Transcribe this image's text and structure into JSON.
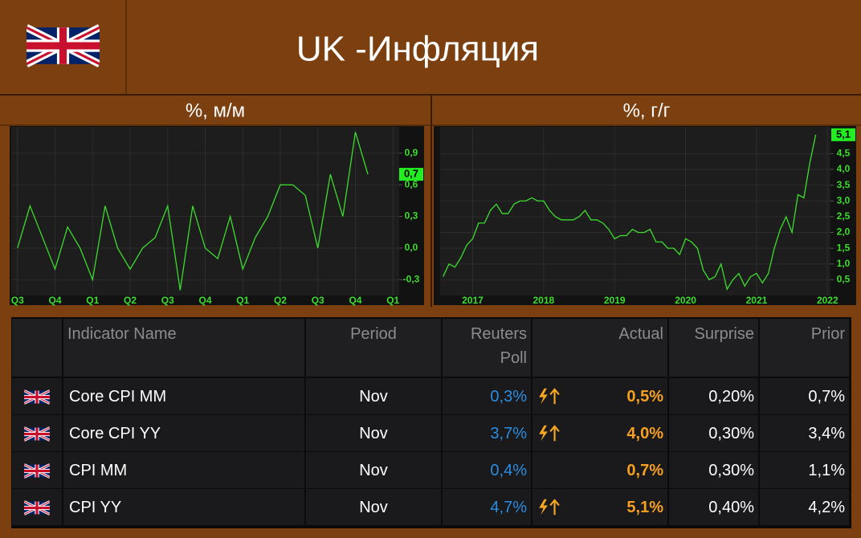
{
  "header": {
    "title": "UK -Инфляция"
  },
  "chart_data": [
    {
      "type": "line",
      "title": "%, м/м",
      "color": "#3ddc2e",
      "grid": true,
      "categories": [
        "Q3",
        null,
        null,
        "Q4",
        null,
        null,
        "Q1",
        null,
        null,
        "Q2",
        null,
        null,
        "Q3",
        null,
        null,
        "Q4",
        null,
        null,
        "Q1",
        null,
        null,
        "Q2",
        null,
        null,
        "Q3",
        null,
        null,
        "Q4",
        null,
        null,
        "Q1"
      ],
      "values": [
        0.0,
        0.4,
        0.1,
        -0.2,
        0.2,
        0.0,
        -0.3,
        0.4,
        0.0,
        -0.2,
        0.0,
        0.1,
        0.4,
        -0.4,
        0.4,
        0.0,
        -0.1,
        0.3,
        -0.2,
        0.1,
        0.3,
        0.6,
        0.6,
        0.5,
        0.0,
        0.7,
        0.3,
        1.1,
        0.7,
        null,
        null
      ],
      "value_labels": [
        null,
        null,
        null,
        null,
        null,
        null,
        null,
        null,
        null,
        null,
        null,
        null,
        null,
        null,
        null,
        null,
        null,
        null,
        null,
        null,
        null,
        null,
        null,
        null,
        null,
        null,
        null,
        null,
        "0,7",
        null,
        null
      ],
      "ylim": [
        -0.45,
        1.15
      ],
      "yticks": [
        {
          "value": -0.3,
          "label": "-0,3"
        },
        {
          "value": 0.0,
          "label": "0,0"
        },
        {
          "value": 0.3,
          "label": "0,3"
        },
        {
          "value": 0.6,
          "label": "0,6"
        },
        {
          "value": 0.9,
          "label": "0,9"
        }
      ]
    },
    {
      "type": "line",
      "title": "%, г/г",
      "color": "#3ddc2e",
      "grid": true,
      "categories": [
        null,
        null,
        null,
        null,
        null,
        "2017",
        null,
        null,
        null,
        null,
        null,
        null,
        null,
        null,
        null,
        null,
        null,
        "2018",
        null,
        null,
        null,
        null,
        null,
        null,
        null,
        null,
        null,
        null,
        null,
        "2019",
        null,
        null,
        null,
        null,
        null,
        null,
        null,
        null,
        null,
        null,
        null,
        "2020",
        null,
        null,
        null,
        null,
        null,
        null,
        null,
        null,
        null,
        null,
        null,
        "2021",
        null,
        null,
        null,
        null,
        null,
        null,
        null,
        null,
        null,
        null,
        null,
        "2022"
      ],
      "values": [
        0.6,
        1.0,
        0.9,
        1.2,
        1.6,
        1.8,
        2.3,
        2.3,
        2.7,
        2.9,
        2.6,
        2.6,
        2.9,
        3.0,
        3.0,
        3.1,
        3.0,
        3.0,
        2.7,
        2.5,
        2.4,
        2.4,
        2.4,
        2.5,
        2.7,
        2.4,
        2.4,
        2.3,
        2.1,
        1.8,
        1.9,
        1.9,
        2.1,
        2.0,
        2.0,
        2.1,
        1.7,
        1.7,
        1.5,
        1.5,
        1.3,
        1.8,
        1.7,
        1.5,
        0.8,
        0.5,
        0.6,
        1.0,
        0.2,
        0.5,
        0.7,
        0.3,
        0.6,
        0.7,
        0.4,
        0.7,
        1.5,
        2.1,
        2.5,
        2.0,
        3.2,
        3.1,
        4.2,
        5.1,
        null,
        null
      ],
      "value_labels": [
        null,
        null,
        null,
        null,
        null,
        null,
        null,
        null,
        null,
        null,
        null,
        null,
        null,
        null,
        null,
        null,
        null,
        null,
        null,
        null,
        null,
        null,
        null,
        null,
        null,
        null,
        null,
        null,
        null,
        null,
        null,
        null,
        null,
        null,
        null,
        null,
        null,
        null,
        null,
        null,
        null,
        null,
        null,
        null,
        null,
        null,
        null,
        null,
        null,
        null,
        null,
        null,
        null,
        null,
        null,
        null,
        null,
        null,
        null,
        null,
        null,
        null,
        null,
        "5,1",
        null,
        null
      ],
      "ylim": [
        0,
        5.35
      ],
      "yticks": [
        {
          "value": 0.5,
          "label": "0,5"
        },
        {
          "value": 1.0,
          "label": "1,0"
        },
        {
          "value": 1.5,
          "label": "1,5"
        },
        {
          "value": 2.0,
          "label": "2,0"
        },
        {
          "value": 2.5,
          "label": "2,5"
        },
        {
          "value": 3.0,
          "label": "3,0"
        },
        {
          "value": 3.5,
          "label": "3,5"
        },
        {
          "value": 4.0,
          "label": "4,0"
        },
        {
          "value": 4.5,
          "label": "4,5"
        }
      ]
    }
  ],
  "table": {
    "columns": [
      "Indicator Name",
      "Period",
      "Reuters Poll",
      "Actual",
      "Surprise",
      "Prior"
    ],
    "rows": [
      [
        "Core CPI MM",
        "Nov",
        "0,3%",
        "0,5%",
        "0,20%",
        "0,7%"
      ],
      [
        "Core CPI YY",
        "Nov",
        "3,7%",
        "4,0%",
        "0,30%",
        "3,4%"
      ],
      [
        "CPI MM",
        "Nov",
        "0,4%",
        "0,7%",
        "0,30%",
        "1,1%"
      ],
      [
        "CPI YY",
        "Nov",
        "4,7%",
        "5,1%",
        "0,40%",
        "4,2%"
      ]
    ]
  }
}
